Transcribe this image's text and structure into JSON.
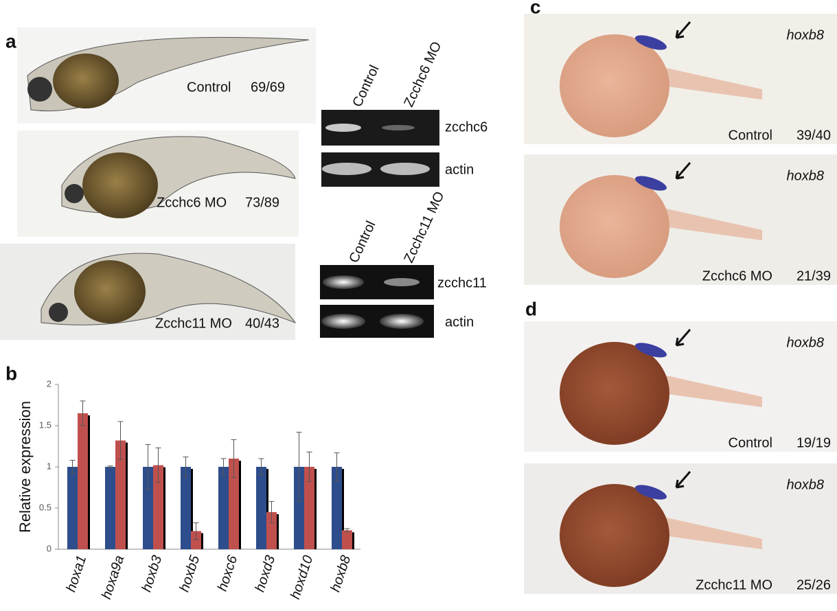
{
  "panel_a": {
    "label": "a",
    "embryos": [
      {
        "name": "Control",
        "count": "69/69"
      },
      {
        "name": "Zcchc6 MO",
        "count": "73/89"
      },
      {
        "name": "Zcchc11 MO",
        "count": "40/43"
      }
    ],
    "gels": [
      {
        "lanes": [
          "Control",
          "Zcchc6 MO"
        ],
        "bands": [
          "zcchc6",
          "actin"
        ]
      },
      {
        "lanes": [
          "Control",
          "Zcchc11 MO"
        ],
        "bands": [
          "zcchc11",
          "actin"
        ]
      }
    ]
  },
  "panel_c": {
    "label": "c",
    "images": [
      {
        "gene": "hoxb8",
        "name": "Control",
        "count": "39/40"
      },
      {
        "gene": "hoxb8",
        "name": "Zcchc6 MO",
        "count": "21/39"
      }
    ]
  },
  "panel_d": {
    "label": "d",
    "images": [
      {
        "gene": "hoxb8",
        "name": "Control",
        "count": "19/19"
      },
      {
        "gene": "hoxb8",
        "name": "Zcchc11 MO",
        "count": "25/26"
      }
    ]
  },
  "chart_data": {
    "type": "bar",
    "label": "b",
    "y_label": "Relative expression",
    "categories": [
      "hoxa1",
      "hoxa9a",
      "hoxb3",
      "hoxb5",
      "hoxc6",
      "hoxd3",
      "hoxd10",
      "hoxb8"
    ],
    "series": [
      {
        "color": "#2e4d8c",
        "values": [
          1,
          1,
          1,
          1,
          1,
          1,
          1,
          1
        ],
        "errors": [
          0.08,
          0.01,
          0.27,
          0.12,
          0.1,
          0.1,
          0.42,
          0.17
        ]
      },
      {
        "color": "#c0504d",
        "values": [
          1.65,
          1.32,
          1.02,
          0.22,
          1.1,
          0.45,
          1.0,
          0.23
        ],
        "errors": [
          0.15,
          0.23,
          0.21,
          0.1,
          0.23,
          0.13,
          0.18,
          0.02
        ]
      }
    ],
    "ylim": [
      0,
      2
    ],
    "yticks": [
      0,
      0.5,
      1,
      1.5,
      2
    ]
  }
}
